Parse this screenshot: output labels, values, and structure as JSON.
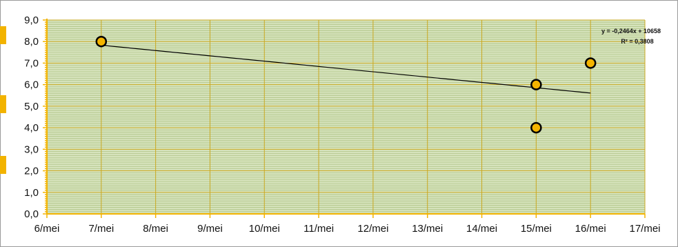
{
  "chart_data": {
    "type": "scatter",
    "title": "",
    "xlabel": "",
    "ylabel": "",
    "x_tick_labels": [
      "6/mei",
      "7/mei",
      "8/mei",
      "9/mei",
      "10/mei",
      "11/mei",
      "12/mei",
      "13/mei",
      "14/mei",
      "15/mei",
      "16/mei",
      "17/mei"
    ],
    "y_tick_labels": [
      "0,0",
      "1,0",
      "2,0",
      "3,0",
      "4,0",
      "5,0",
      "6,0",
      "7,0",
      "8,0",
      "9,0"
    ],
    "xlim": [
      "6/mei",
      "17/mei"
    ],
    "ylim": [
      0,
      9
    ],
    "grid": true,
    "points": [
      {
        "x": "7/mei",
        "y": 8.0
      },
      {
        "x": "15/mei",
        "y": 6.0
      },
      {
        "x": "15/mei",
        "y": 4.0
      },
      {
        "x": "16/mei",
        "y": 7.0
      }
    ],
    "trendline": {
      "type": "linear",
      "x_start": "7/mei",
      "x_end": "16/mei",
      "y_start": 7.83,
      "y_end": 5.61,
      "equation": "y = -0,2464x + 10658",
      "r_squared": "R² = 0,3808"
    },
    "colors": {
      "plot_background": "#d6e3bc",
      "minor_grid": "#a9bf7f",
      "major_grid": "#c9a820",
      "axis": "#f2b300",
      "marker_fill": "#f4b400",
      "marker_edge": "#000000",
      "trendline": "#000000"
    }
  }
}
